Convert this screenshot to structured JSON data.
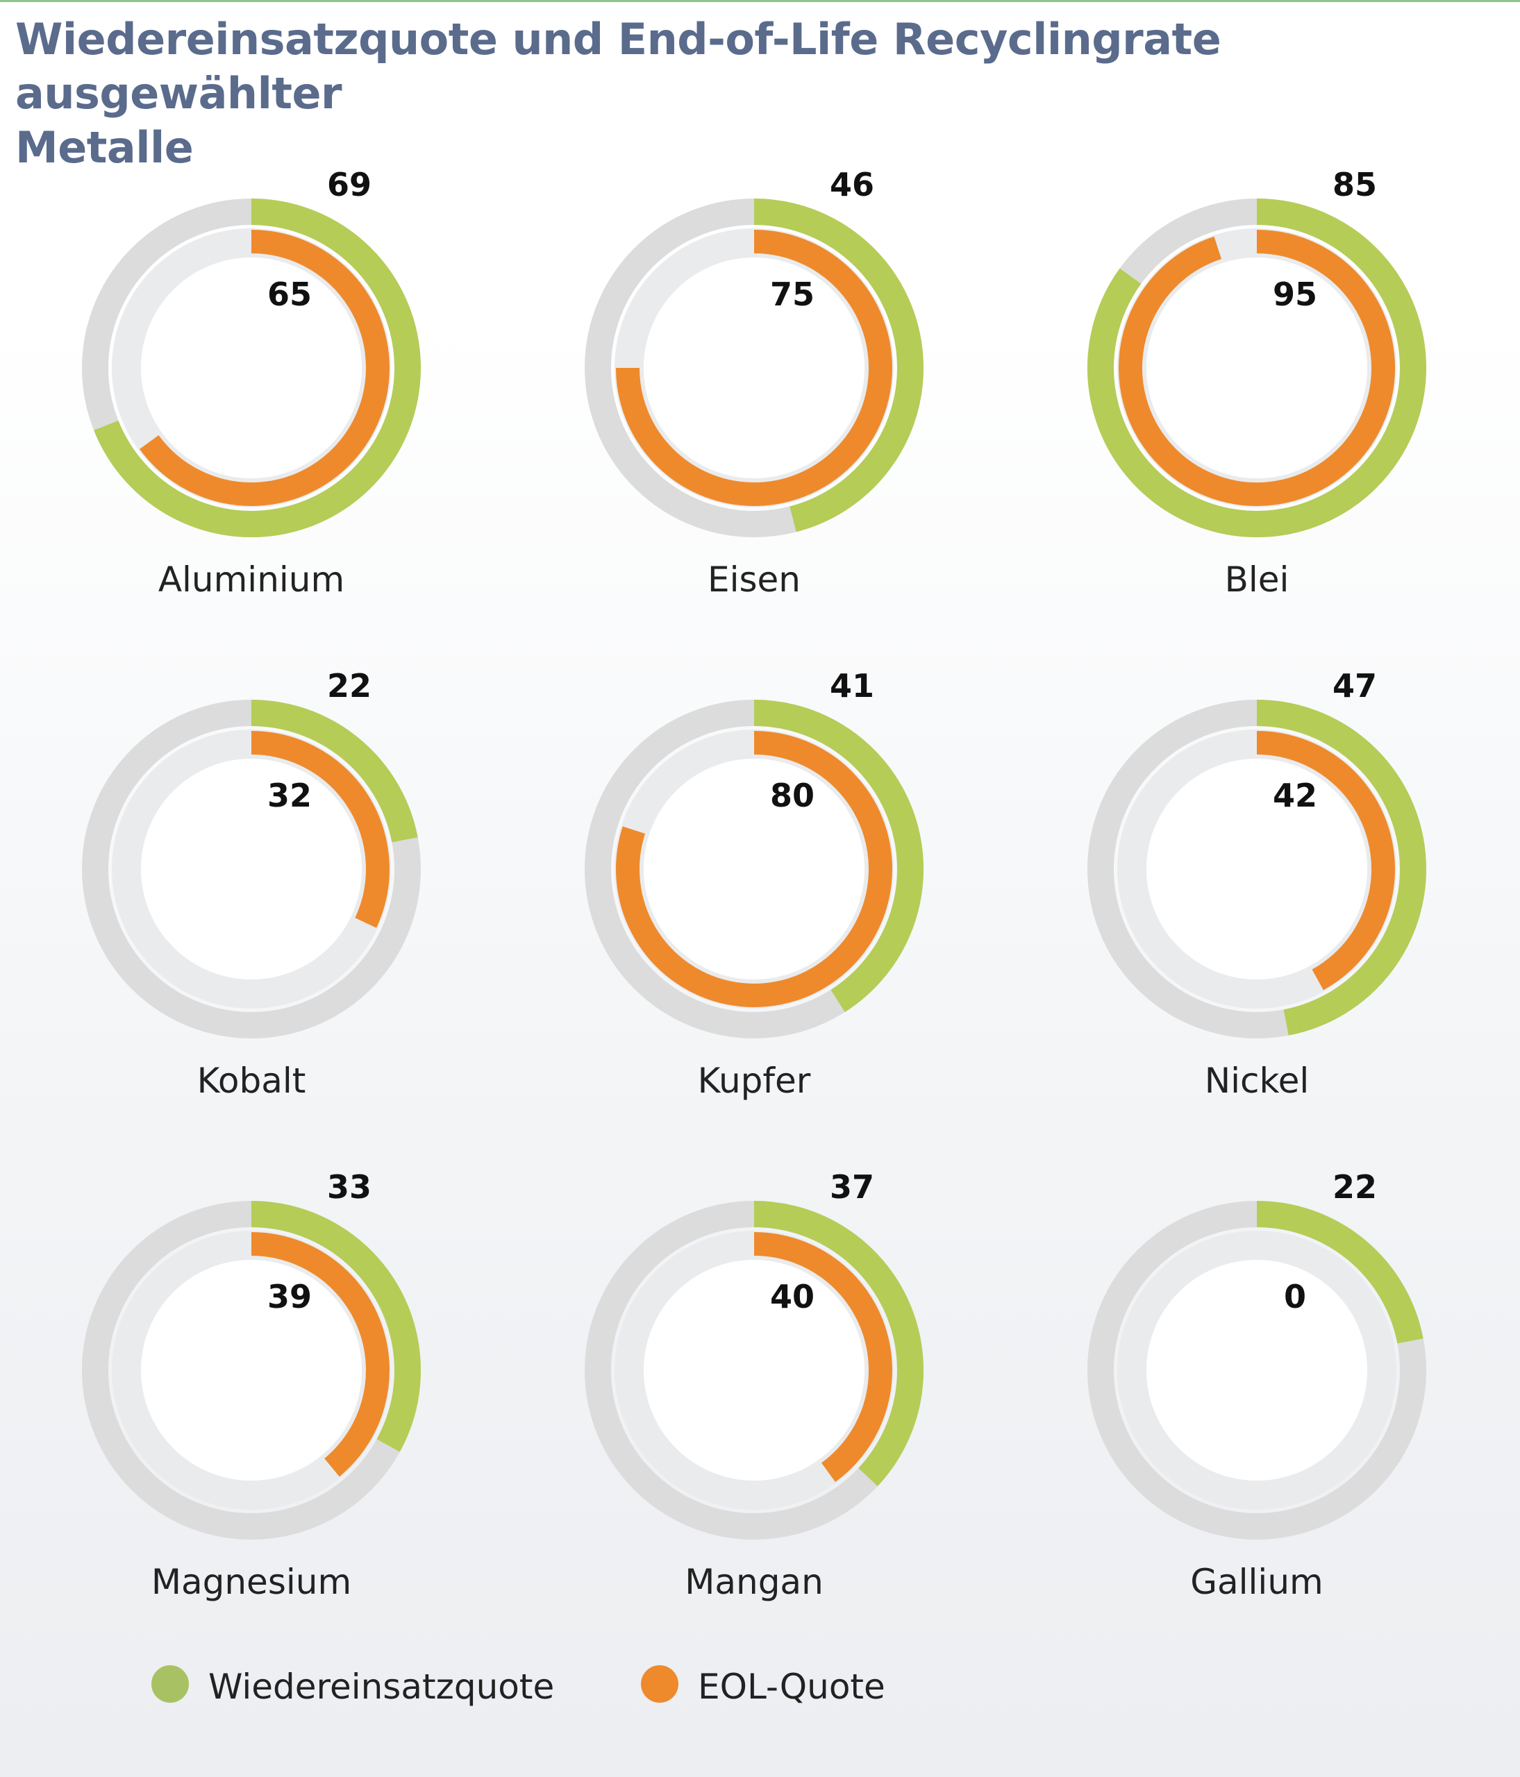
{
  "title_line1": "Wiedereinsatzquote und End-of-Life Recyclingrate ausgewählter",
  "title_line2": "Metalle",
  "colors": {
    "reuse": "#b5cc57",
    "eol": "#ee8a2c",
    "outer_track": "#dcdcdc",
    "inner_track": "#eaebed",
    "legend_reuse": "#a8c263",
    "legend_eol": "#ee8a2c"
  },
  "legend": {
    "reuse_label": "Wiedereinsatzquote",
    "eol_label": "EOL-Quote"
  },
  "chart_data": {
    "type": "radial-bar",
    "title": "Wiedereinsatzquote und End-of-Life Recyclingrate ausgewählter Metalle",
    "unit": "%",
    "max": 100,
    "series": [
      {
        "name": "Wiedereinsatzquote",
        "ring": "outer"
      },
      {
        "name": "EOL-Quote",
        "ring": "inner"
      }
    ],
    "metals": [
      {
        "name": "Aluminium",
        "reuse": 69,
        "eol": 65
      },
      {
        "name": "Eisen",
        "reuse": 46,
        "eol": 75
      },
      {
        "name": "Blei",
        "reuse": 85,
        "eol": 95
      },
      {
        "name": "Kobalt",
        "reuse": 22,
        "eol": 32
      },
      {
        "name": "Kupfer",
        "reuse": 41,
        "eol": 80
      },
      {
        "name": "Nickel",
        "reuse": 47,
        "eol": 42
      },
      {
        "name": "Magnesium",
        "reuse": 33,
        "eol": 39
      },
      {
        "name": "Mangan",
        "reuse": 37,
        "eol": 40
      },
      {
        "name": "Gallium",
        "reuse": 22,
        "eol": 0
      }
    ]
  }
}
